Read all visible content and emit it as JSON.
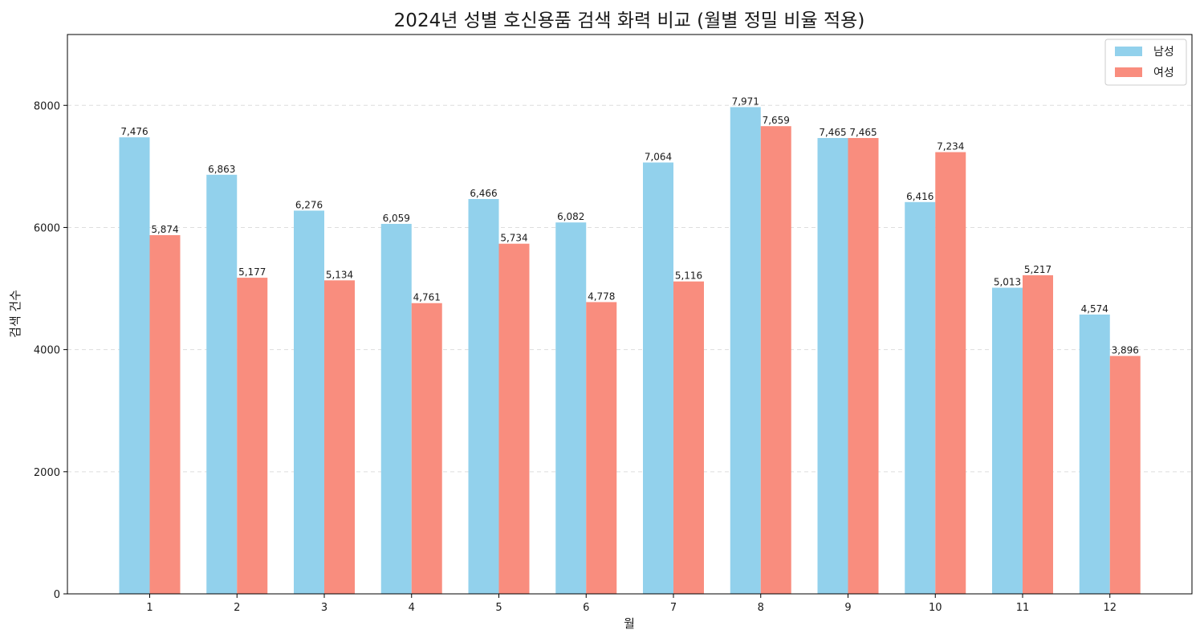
{
  "chart_data": {
    "type": "bar",
    "title": "2024년 성별 호신용품 검색 화력 비교 (월별 정밀 비율 적용)",
    "xlabel": "월",
    "ylabel": "검색 건수",
    "categories": [
      "1",
      "2",
      "3",
      "4",
      "5",
      "6",
      "7",
      "8",
      "9",
      "10",
      "11",
      "12"
    ],
    "series": [
      {
        "name": "남성",
        "color": "#92d1ec",
        "values": [
          7476,
          6863,
          6276,
          6059,
          6466,
          6082,
          7064,
          7971,
          7465,
          6416,
          5013,
          4574
        ],
        "labels": [
          "7,476",
          "6,863",
          "6,276",
          "6,059",
          "6,466",
          "6,082",
          "7,064",
          "7,971",
          "7,465",
          "6,416",
          "5,013",
          "4,574"
        ]
      },
      {
        "name": "여성",
        "color": "#f98d7e",
        "values": [
          5874,
          5177,
          5134,
          4761,
          5734,
          4778,
          5116,
          7659,
          7465,
          7234,
          5217,
          3896
        ],
        "labels": [
          "5,874",
          "5,177",
          "5,134",
          "4,761",
          "5,734",
          "4,778",
          "5,116",
          "7,659",
          "7,465",
          "7,234",
          "5,217",
          "3,896"
        ]
      }
    ],
    "yticks": [
      0,
      2000,
      4000,
      6000,
      8000
    ],
    "ytick_labels": [
      "0",
      "2000",
      "4000",
      "6000",
      "8000"
    ],
    "ylim": [
      0,
      9160
    ],
    "grid": "horizontal-dashed",
    "legend": "top-right"
  }
}
